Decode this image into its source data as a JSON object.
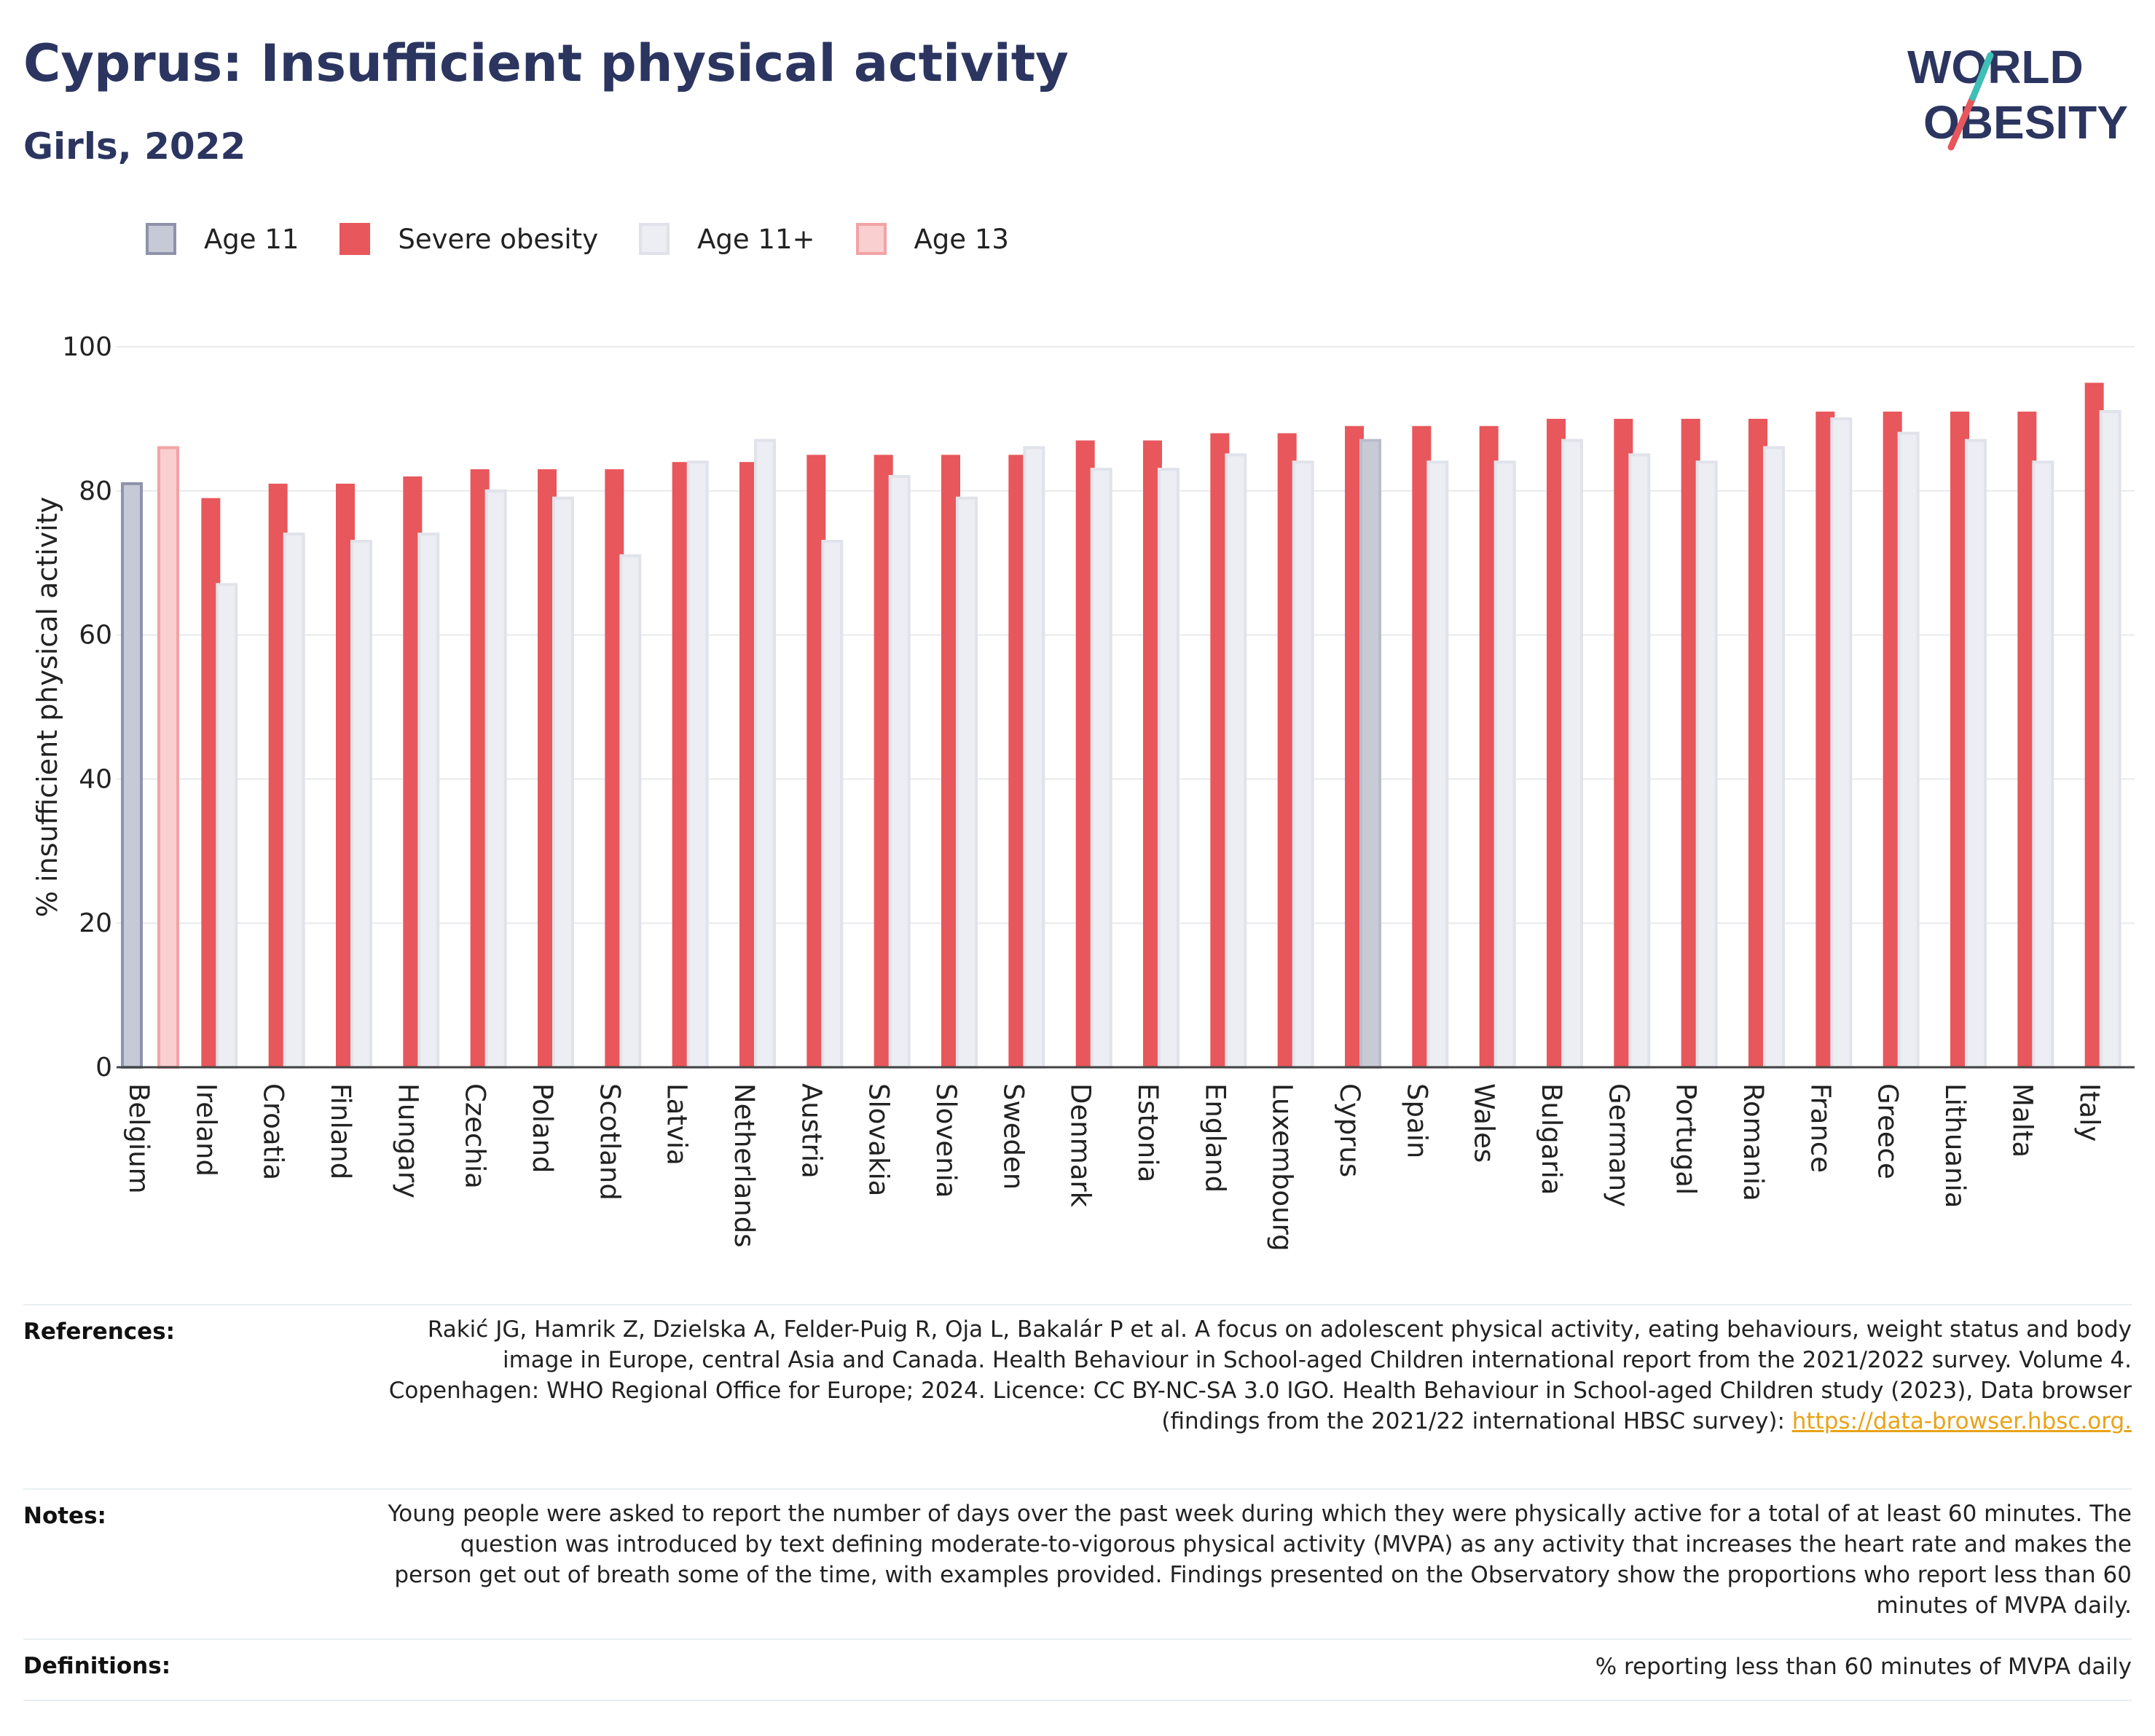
{
  "header": {
    "title": "Cyprus: Insufficient physical activity",
    "subtitle": "Girls, 2022"
  },
  "logo": {
    "line1": "WORLD",
    "line2": "OBESITY"
  },
  "legend": [
    {
      "label": "Age 11",
      "color": "#a3a8bd"
    },
    {
      "label": "Severe obesity",
      "color": "#e8575b"
    },
    {
      "label": "Age 11+",
      "color": "#eceef3"
    },
    {
      "label": "Age 13",
      "color": "#f6b9bb"
    }
  ],
  "chart_data": {
    "type": "bar",
    "ylabel": "% insufficient physical activity",
    "ylim": [
      0,
      100
    ],
    "yticks": [
      0,
      20,
      40,
      60,
      80,
      100
    ],
    "grid": true,
    "legend_position": "top-left",
    "categories": [
      "Belgium",
      "Ireland",
      "Croatia",
      "Finland",
      "Hungary",
      "Czechia",
      "Poland",
      "Scotland",
      "Latvia",
      "Netherlands",
      "Austria",
      "Slovakia",
      "Slovenia",
      "Sweden",
      "Denmark",
      "Estonia",
      "England",
      "Luxembourg",
      "Cyprus",
      "Spain",
      "Wales",
      "Bulgaria",
      "Germany",
      "Portugal",
      "Romania",
      "France",
      "Greece",
      "Lithuania",
      "Malta",
      "Italy"
    ],
    "series": [
      {
        "name": "Age 11",
        "color": "#a3a8bd",
        "values": [
          81,
          null,
          null,
          null,
          null,
          null,
          null,
          null,
          null,
          null,
          null,
          null,
          null,
          null,
          null,
          null,
          null,
          null,
          null,
          null,
          null,
          null,
          null,
          null,
          null,
          null,
          null,
          null,
          null,
          null
        ]
      },
      {
        "name": "Age 13",
        "color": "#f6b9bb",
        "values": [
          86,
          null,
          null,
          null,
          null,
          null,
          null,
          null,
          null,
          null,
          null,
          null,
          null,
          null,
          null,
          null,
          null,
          null,
          null,
          null,
          null,
          null,
          null,
          null,
          null,
          null,
          null,
          null,
          null,
          null
        ]
      },
      {
        "name": "Severe obesity",
        "color": "#e8575b",
        "values": [
          null,
          79,
          81,
          81,
          82,
          83,
          83,
          83,
          84,
          84,
          85,
          85,
          85,
          85,
          87,
          87,
          88,
          88,
          89,
          89,
          89,
          90,
          90,
          90,
          90,
          91,
          91,
          91,
          91,
          95
        ]
      },
      {
        "name": "Age 11+",
        "color": "#eceef3",
        "values": [
          null,
          67,
          74,
          73,
          74,
          80,
          79,
          71,
          84,
          87,
          73,
          82,
          79,
          86,
          83,
          83,
          85,
          84,
          87,
          84,
          84,
          87,
          85,
          84,
          86,
          90,
          88,
          87,
          84,
          91
        ]
      }
    ]
  },
  "references": [
    {
      "key": "References:",
      "text": "Rakić JG, Hamrik Z, Dzielska A, Felder-Puig R, Oja L, Bakalár P et al. A focus on adolescent physical activity, eating behaviours, weight status and body image in Europe, central Asia and Canada. Health Behaviour in School-aged Children international report from the 2021/2022 survey. Volume 4. Copenhagen: WHO Regional Office for Europe; 2024. Licence: CC BY-NC-SA 3.0 IGO. Health Behaviour in School-aged Children study (2023), Data browser (findings from the 2021/22 international HBSC survey): ",
      "link": "https://data-browser.hbsc.org."
    },
    {
      "key": "Notes:",
      "text": "Young people were asked to report the number of days over the past week during which they were physically active for a total of at least 60 minutes. The question was introduced by text defining moderate-to-vigorous physical activity (MVPA) as any activity that increases the heart rate and makes the person get out of breath some of the time, with examples provided. Findings presented on the Observatory show the proportions who report less than 60 minutes of MVPA daily."
    },
    {
      "key": "Definitions:",
      "text": "% reporting less than 60 minutes of MVPA daily"
    }
  ]
}
